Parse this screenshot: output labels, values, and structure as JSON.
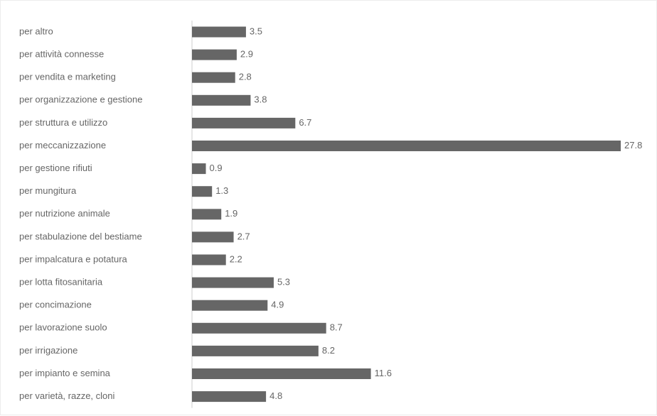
{
  "chart_data": {
    "type": "bar",
    "orientation": "horizontal",
    "title": "",
    "xlabel": "",
    "ylabel": "",
    "categories": [
      "per altro",
      "per attività connesse",
      "per vendita e marketing",
      "per organizzazione e gestione",
      "per struttura e utilizzo",
      "per meccanizzazione",
      "per gestione rifiuti",
      "per mungitura",
      "per nutrizione animale",
      "per stabulazione del bestiame",
      "per impalcatura e potatura",
      "per lotta fitosanitaria",
      "per concimazione",
      "per lavorazione suolo",
      "per irrigazione",
      "per impianto e semina",
      "per varietà, razze, cloni"
    ],
    "values": [
      3.5,
      2.9,
      2.8,
      3.8,
      6.7,
      27.8,
      0.9,
      1.3,
      1.9,
      2.7,
      2.2,
      5.3,
      4.9,
      8.7,
      8.2,
      11.6,
      4.8
    ],
    "value_labels": [
      "3.5",
      "2.9",
      "2.8",
      "3.8",
      "6.7",
      "27.8",
      "0.9",
      "1.3",
      "1.9",
      "2.7",
      "2.2",
      "5.3",
      "4.9",
      "8.7",
      "8.2",
      "11.6",
      "4.8"
    ],
    "xlim": [
      0,
      27.8
    ],
    "grid": false,
    "legend": "none",
    "colors": {
      "bar": "#666666",
      "text": "#666666",
      "axis": "#cccccc"
    }
  }
}
